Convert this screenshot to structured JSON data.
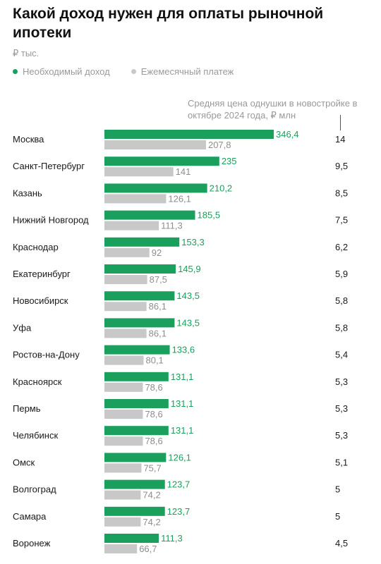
{
  "title": "Какой доход нужен для оплаты рыночной ипотеки",
  "unit": "₽ тыс.",
  "legend": [
    {
      "label": "Необходимый доход",
      "color": "#1aa05c"
    },
    {
      "label": "Ежемесячный платеж",
      "color": "#c8c8c8"
    }
  ],
  "column_note": "Средняя цена однушки в новостройке в октябре 2024 года, ₽ млн",
  "colors": {
    "income": "#1aa05c",
    "payment": "#c8c8c8",
    "income_label": "#1aa05c"
  },
  "chart_data": {
    "type": "bar",
    "orientation": "horizontal",
    "categories": [
      "Москва",
      "Санкт-Петербург",
      "Казань",
      "Нижний Новгород",
      "Краснодар",
      "Екатеринбург",
      "Новосибирск",
      "Уфа",
      "Ростов-на-Дону",
      "Красноярск",
      "Пермь",
      "Челябинск",
      "Омск",
      "Волгоград",
      "Самара",
      "Воронеж"
    ],
    "series": [
      {
        "name": "Необходимый доход",
        "values": [
          346.4,
          235,
          210.2,
          185.5,
          153.3,
          145.9,
          143.5,
          143.5,
          133.6,
          131.1,
          131.1,
          131.1,
          126.1,
          123.7,
          123.7,
          111.3
        ],
        "labels": [
          "346,4",
          "235",
          "210,2",
          "185,5",
          "153,3",
          "145,9",
          "143,5",
          "143,5",
          "133,6",
          "131,1",
          "131,1",
          "131,1",
          "126,1",
          "123,7",
          "123,7",
          "111,3"
        ]
      },
      {
        "name": "Ежемесячный платеж",
        "values": [
          207.8,
          141,
          126.1,
          111.3,
          92,
          87.5,
          86.1,
          86.1,
          80.1,
          78.6,
          78.6,
          78.6,
          75.7,
          74.2,
          74.2,
          66.7
        ],
        "labels": [
          "207,8",
          "141",
          "126,1",
          "111,3",
          "92",
          "87,5",
          "86,1",
          "86,1",
          "80,1",
          "78,6",
          "78,6",
          "78,6",
          "75,7",
          "74,2",
          "74,2",
          "66,7"
        ]
      }
    ],
    "prices": {
      "values": [
        14,
        9.5,
        8.5,
        7.5,
        6.2,
        5.9,
        5.8,
        5.8,
        5.4,
        5.3,
        5.3,
        5.3,
        5.1,
        5,
        5,
        4.5
      ],
      "labels": [
        "14",
        "9,5",
        "8,5",
        "7,5",
        "6,2",
        "5,9",
        "5,8",
        "5,8",
        "5,4",
        "5,3",
        "5,3",
        "5,3",
        "5,1",
        "5",
        "5",
        "4,5"
      ]
    }
  }
}
